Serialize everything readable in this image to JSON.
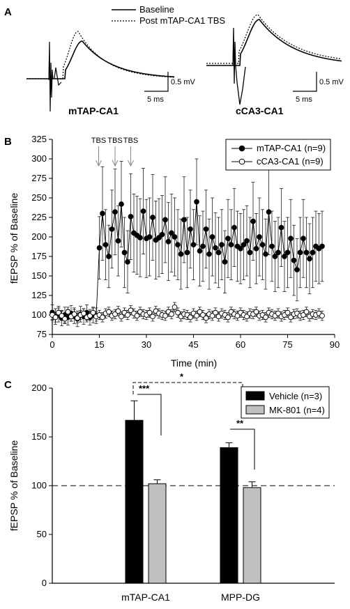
{
  "chart_data": [
    {
      "panel": "A",
      "type": "line",
      "legend": [
        "Baseline",
        "Post mTAP-CA1 TBS"
      ],
      "traces": [
        {
          "name": "mTAP-CA1",
          "scale_voltage": "0.5 mV",
          "scale_time": "5 ms"
        },
        {
          "name": "cCA3-CA1",
          "scale_voltage": "0.5 mV",
          "scale_time": "5 ms"
        }
      ]
    },
    {
      "panel": "B",
      "type": "scatter",
      "xlabel": "Time (min)",
      "ylabel": "fEPSP % of Baseline",
      "xlim": [
        0,
        90
      ],
      "ylim": [
        75,
        325
      ],
      "xticks": [
        0,
        15,
        30,
        45,
        60,
        75,
        90
      ],
      "yticks": [
        75,
        100,
        125,
        150,
        175,
        200,
        225,
        250,
        275,
        300,
        325
      ],
      "annotations": [
        "TBS",
        "TBS",
        "TBS"
      ],
      "tbs_times": [
        15,
        20,
        25
      ],
      "legend_position": "top-right",
      "series": [
        {
          "name": "mTAP-CA1 (n=9)",
          "marker": "filled-circle",
          "x": [
            0,
            1,
            2,
            3,
            4,
            5,
            6,
            7,
            8,
            9,
            10,
            11,
            12,
            13,
            14,
            15,
            16,
            17,
            18,
            19,
            20,
            21,
            22,
            23,
            24,
            25,
            26,
            27,
            28,
            29,
            30,
            31,
            32,
            33,
            34,
            35,
            36,
            37,
            38,
            39,
            40,
            41,
            42,
            43,
            44,
            45,
            46,
            47,
            48,
            49,
            50,
            51,
            52,
            53,
            54,
            55,
            56,
            57,
            58,
            59,
            60,
            61,
            62,
            63,
            64,
            65,
            66,
            67,
            68,
            69,
            70,
            71,
            72,
            73,
            74,
            75,
            76,
            77,
            78,
            79,
            80,
            81,
            82,
            83,
            84,
            85,
            86
          ],
          "y": [
            103,
            98,
            101,
            96,
            100,
            97,
            102,
            99,
            95,
            101,
            98,
            103,
            97,
            100,
            99,
            186,
            230,
            190,
            175,
            210,
            232,
            195,
            242,
            180,
            168,
            226,
            205,
            202,
            199,
            233,
            198,
            200,
            225,
            196,
            199,
            203,
            222,
            194,
            205,
            200,
            190,
            178,
            222,
            180,
            210,
            190,
            245,
            182,
            188,
            210,
            178,
            200,
            186,
            180,
            190,
            168,
            198,
            190,
            212,
            188,
            185,
            190,
            195,
            180,
            220,
            185,
            200,
            190,
            178,
            232,
            188,
            175,
            180,
            212,
            175,
            180,
            198,
            170,
            158,
            180,
            198,
            180,
            172,
            180,
            188,
            185,
            188
          ],
          "err": [
            10,
            10,
            10,
            10,
            10,
            10,
            10,
            10,
            10,
            10,
            10,
            10,
            10,
            10,
            10,
            40,
            60,
            45,
            40,
            50,
            55,
            45,
            55,
            45,
            40,
            55,
            50,
            50,
            50,
            55,
            50,
            50,
            55,
            50,
            50,
            50,
            55,
            50,
            50,
            50,
            45,
            45,
            55,
            45,
            50,
            45,
            55,
            45,
            45,
            50,
            45,
            50,
            45,
            45,
            45,
            40,
            50,
            45,
            50,
            45,
            45,
            45,
            45,
            45,
            50,
            45,
            50,
            45,
            45,
            55,
            45,
            45,
            45,
            50,
            45,
            45,
            50,
            45,
            40,
            45,
            50,
            45,
            45,
            45,
            45,
            45,
            45
          ]
        },
        {
          "name": "cCA3-CA1 (n=9)",
          "marker": "open-circle",
          "x": [
            0,
            1,
            2,
            3,
            4,
            5,
            6,
            7,
            8,
            9,
            10,
            11,
            12,
            13,
            14,
            15,
            16,
            17,
            18,
            19,
            20,
            21,
            22,
            23,
            24,
            25,
            26,
            27,
            28,
            29,
            30,
            31,
            32,
            33,
            34,
            35,
            36,
            37,
            38,
            39,
            40,
            41,
            42,
            43,
            44,
            45,
            46,
            47,
            48,
            49,
            50,
            51,
            52,
            53,
            54,
            55,
            56,
            57,
            58,
            59,
            60,
            61,
            62,
            63,
            64,
            65,
            66,
            67,
            68,
            69,
            70,
            71,
            72,
            73,
            74,
            75,
            76,
            77,
            78,
            79,
            80,
            81,
            82,
            83,
            84,
            85,
            86
          ],
          "y": [
            100,
            97,
            103,
            99,
            95,
            104,
            98,
            101,
            96,
            100,
            102,
            97,
            99,
            103,
            98,
            100,
            97,
            102,
            104,
            99,
            101,
            105,
            98,
            103,
            100,
            106,
            102,
            99,
            104,
            101,
            100,
            103,
            98,
            105,
            102,
            100,
            99,
            104,
            101,
            110,
            103,
            98,
            101,
            100,
            97,
            102,
            99,
            104,
            100,
            96,
            101,
            99,
            103,
            98,
            102,
            100,
            97,
            104,
            101,
            99,
            103,
            100,
            98,
            102,
            101,
            104,
            99,
            100,
            97,
            103,
            101,
            99,
            102,
            98,
            100,
            103,
            97,
            101,
            102,
            99,
            100,
            104,
            98,
            101,
            100,
            102,
            99
          ],
          "err": [
            6,
            6,
            6,
            6,
            6,
            6,
            6,
            6,
            6,
            6,
            6,
            6,
            6,
            6,
            6,
            6,
            6,
            6,
            6,
            6,
            6,
            6,
            6,
            6,
            6,
            6,
            6,
            6,
            6,
            6,
            6,
            6,
            6,
            6,
            6,
            6,
            6,
            6,
            6,
            6,
            6,
            6,
            6,
            6,
            6,
            6,
            6,
            6,
            6,
            6,
            6,
            6,
            6,
            6,
            6,
            6,
            6,
            6,
            6,
            6,
            6,
            6,
            6,
            6,
            6,
            6,
            6,
            6,
            6,
            6,
            6,
            6,
            6,
            6,
            6,
            6,
            6,
            6,
            6,
            6,
            6,
            6,
            6,
            6,
            6,
            6,
            6
          ]
        }
      ]
    },
    {
      "panel": "C",
      "type": "bar",
      "ylabel": "fEPSP % of Baseline",
      "ylim": [
        0,
        200
      ],
      "yticks": [
        0,
        50,
        100,
        150,
        200
      ],
      "categories": [
        "mTAP-CA1",
        "MPP-DG"
      ],
      "baseline": 100,
      "legend_position": "top-right",
      "series": [
        {
          "name": "Vehicle (n=3)",
          "color": "#000000",
          "values": [
            167,
            139
          ],
          "err": [
            20,
            5
          ]
        },
        {
          "name": "MK-801 (n=4)",
          "color": "#c0c0c0",
          "values": [
            102,
            98
          ],
          "err": [
            4,
            6
          ]
        }
      ],
      "significance": [
        "***",
        "**",
        "*"
      ]
    }
  ],
  "panel_labels": [
    "A",
    "B",
    "C"
  ]
}
